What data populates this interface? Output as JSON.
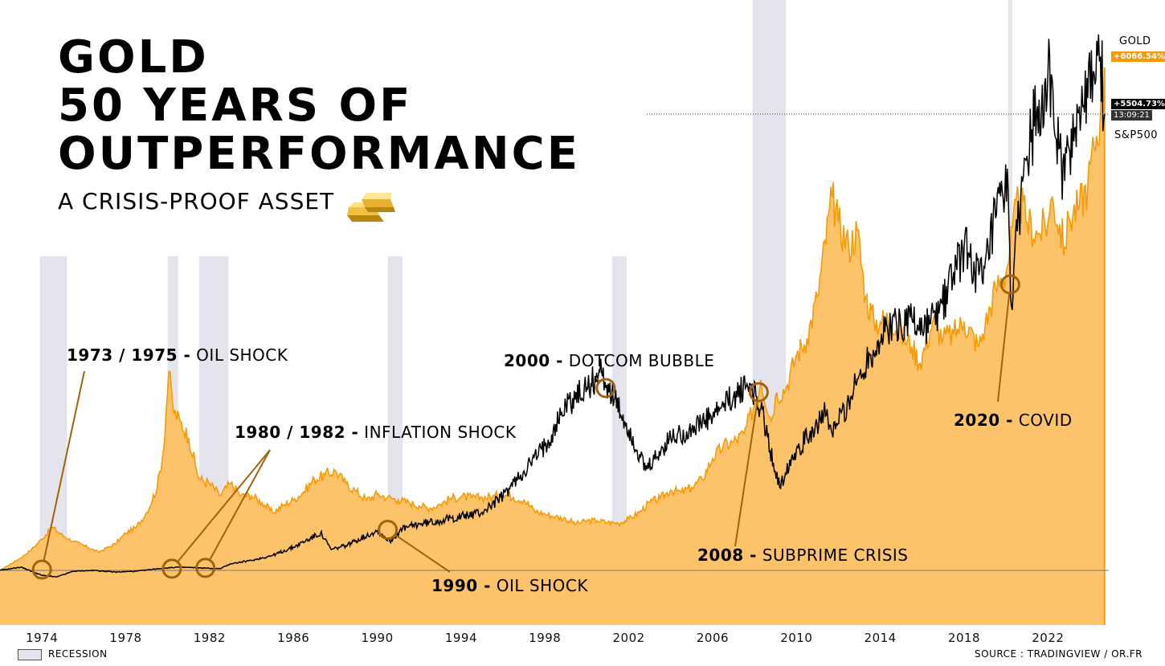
{
  "title_lines": [
    "GOLD",
    "50 YEARS OF",
    "OUTPERFORMANCE"
  ],
  "subtitle": "A CRISIS-PROOF ASSET",
  "legend_label": "RECESSION",
  "source": "SOURCE : TRADINGVIEW / OR.FR",
  "colors": {
    "gold_fill": "#fcc36b",
    "gold_line": "#f59b0a",
    "sp500_line": "#000000",
    "recession": "#e4e4ec",
    "annotation": "#a0630c"
  },
  "chart_data": {
    "type": "area",
    "x_ticks": [
      "1974",
      "1978",
      "1982",
      "1986",
      "1990",
      "1994",
      "1998",
      "2002",
      "2006",
      "2010",
      "2014",
      "2018",
      "2022"
    ],
    "xlim": [
      1972.0,
      2024.9
    ],
    "ylim": [
      -200,
      6300
    ],
    "y_unit": "%",
    "grid": false,
    "series": [
      {
        "name": "GOLD",
        "last_value_label": "+6066.54%",
        "style": "area",
        "points": [
          [
            1972.0,
            0
          ],
          [
            1973.0,
            150
          ],
          [
            1973.5,
            250
          ],
          [
            1974.0,
            380
          ],
          [
            1974.5,
            520
          ],
          [
            1975.0,
            420
          ],
          [
            1975.5,
            350
          ],
          [
            1976.0,
            300
          ],
          [
            1976.7,
            220
          ],
          [
            1977.5,
            320
          ],
          [
            1978.0,
            450
          ],
          [
            1978.5,
            520
          ],
          [
            1979.0,
            700
          ],
          [
            1979.5,
            1000
          ],
          [
            1979.8,
            1450
          ],
          [
            1980.05,
            2400
          ],
          [
            1980.3,
            1900
          ],
          [
            1980.6,
            1800
          ],
          [
            1981.0,
            1600
          ],
          [
            1981.5,
            1100
          ],
          [
            1982.0,
            1050
          ],
          [
            1982.5,
            900
          ],
          [
            1983.0,
            1050
          ],
          [
            1983.5,
            900
          ],
          [
            1984.0,
            900
          ],
          [
            1984.5,
            820
          ],
          [
            1985.0,
            700
          ],
          [
            1985.5,
            780
          ],
          [
            1986.0,
            850
          ],
          [
            1986.5,
            950
          ],
          [
            1987.0,
            1100
          ],
          [
            1987.5,
            1150
          ],
          [
            1988.0,
            1200
          ],
          [
            1988.5,
            1050
          ],
          [
            1989.0,
            950
          ],
          [
            1989.5,
            850
          ],
          [
            1990.0,
            920
          ],
          [
            1990.5,
            880
          ],
          [
            1991.0,
            850
          ],
          [
            1991.5,
            820
          ],
          [
            1992.0,
            780
          ],
          [
            1992.5,
            750
          ],
          [
            1993.0,
            800
          ],
          [
            1993.5,
            870
          ],
          [
            1994.0,
            890
          ],
          [
            1994.5,
            880
          ],
          [
            1995.0,
            880
          ],
          [
            1995.5,
            890
          ],
          [
            1996.0,
            920
          ],
          [
            1996.5,
            880
          ],
          [
            1997.0,
            850
          ],
          [
            1997.5,
            720
          ],
          [
            1998.0,
            680
          ],
          [
            1998.5,
            650
          ],
          [
            1999.0,
            620
          ],
          [
            1999.5,
            560
          ],
          [
            2000.0,
            600
          ],
          [
            2000.5,
            600
          ],
          [
            2001.0,
            580
          ],
          [
            2001.5,
            570
          ],
          [
            2002.0,
            620
          ],
          [
            2002.5,
            700
          ],
          [
            2003.0,
            820
          ],
          [
            2003.5,
            870
          ],
          [
            2004.0,
            970
          ],
          [
            2004.5,
            940
          ],
          [
            2005.0,
            1000
          ],
          [
            2005.5,
            1100
          ],
          [
            2006.0,
            1350
          ],
          [
            2006.5,
            1500
          ],
          [
            2007.0,
            1550
          ],
          [
            2007.5,
            1650
          ],
          [
            2008.0,
            2000
          ],
          [
            2008.3,
            2300
          ],
          [
            2008.8,
            1800
          ],
          [
            2009.0,
            2100
          ],
          [
            2009.5,
            2200
          ],
          [
            2010.0,
            2600
          ],
          [
            2010.5,
            2800
          ],
          [
            2011.0,
            3300
          ],
          [
            2011.7,
            4500
          ],
          [
            2012.0,
            4200
          ],
          [
            2012.5,
            3900
          ],
          [
            2012.9,
            4100
          ],
          [
            2013.3,
            3300
          ],
          [
            2013.7,
            3000
          ],
          [
            2014.0,
            3000
          ],
          [
            2014.5,
            3050
          ],
          [
            2015.0,
            2850
          ],
          [
            2015.5,
            2700
          ],
          [
            2015.9,
            2500
          ],
          [
            2016.5,
            3000
          ],
          [
            2017.0,
            2800
          ],
          [
            2017.5,
            2850
          ],
          [
            2018.0,
            3000
          ],
          [
            2018.7,
            2700
          ],
          [
            2019.0,
            2950
          ],
          [
            2019.5,
            3400
          ],
          [
            2020.0,
            3600
          ],
          [
            2020.6,
            4500
          ],
          [
            2021.0,
            4200
          ],
          [
            2021.5,
            4050
          ],
          [
            2022.0,
            4200
          ],
          [
            2022.2,
            4500
          ],
          [
            2022.8,
            3900
          ],
          [
            2023.0,
            4250
          ],
          [
            2023.5,
            4400
          ],
          [
            2023.9,
            4650
          ],
          [
            2024.2,
            5100
          ],
          [
            2024.5,
            5500
          ],
          [
            2024.7,
            6066.54
          ]
        ]
      },
      {
        "name": "S&P500",
        "last_value_label": "+5504.73%",
        "time_label": "13:09:21",
        "style": "line",
        "points": [
          [
            1972.0,
            0
          ],
          [
            1973.0,
            40
          ],
          [
            1974.0,
            -60
          ],
          [
            1974.7,
            -80
          ],
          [
            1975.5,
            -10
          ],
          [
            1976.5,
            0
          ],
          [
            1977.5,
            -20
          ],
          [
            1978.5,
            -10
          ],
          [
            1979.5,
            20
          ],
          [
            1980.5,
            40
          ],
          [
            1981.5,
            30
          ],
          [
            1982.5,
            20
          ],
          [
            1983.0,
            80
          ],
          [
            1984.0,
            120
          ],
          [
            1985.0,
            180
          ],
          [
            1986.0,
            280
          ],
          [
            1987.3,
            450
          ],
          [
            1987.8,
            250
          ],
          [
            1988.5,
            300
          ],
          [
            1989.5,
            420
          ],
          [
            1990.0,
            480
          ],
          [
            1990.6,
            350
          ],
          [
            1991.2,
            500
          ],
          [
            1992.0,
            560
          ],
          [
            1993.0,
            600
          ],
          [
            1994.0,
            650
          ],
          [
            1995.0,
            700
          ],
          [
            1996.0,
            900
          ],
          [
            1997.0,
            1200
          ],
          [
            1998.0,
            1500
          ],
          [
            1999.0,
            2000
          ],
          [
            2000.0,
            2200
          ],
          [
            2000.7,
            2400
          ],
          [
            2001.3,
            2050
          ],
          [
            2002.0,
            1700
          ],
          [
            2002.8,
            1200
          ],
          [
            2003.3,
            1350
          ],
          [
            2004.0,
            1600
          ],
          [
            2005.0,
            1700
          ],
          [
            2006.0,
            1850
          ],
          [
            2007.0,
            2100
          ],
          [
            2007.8,
            2250
          ],
          [
            2008.3,
            1950
          ],
          [
            2008.9,
            1300
          ],
          [
            2009.2,
            1000
          ],
          [
            2009.8,
            1400
          ],
          [
            2010.5,
            1600
          ],
          [
            2011.3,
            1900
          ],
          [
            2011.7,
            1650
          ],
          [
            2012.5,
            2050
          ],
          [
            2013.5,
            2600
          ],
          [
            2014.5,
            2950
          ],
          [
            2015.5,
            3050
          ],
          [
            2016.0,
            2900
          ],
          [
            2016.8,
            3100
          ],
          [
            2017.5,
            3600
          ],
          [
            2018.0,
            3900
          ],
          [
            2018.9,
            3450
          ],
          [
            2019.5,
            4250
          ],
          [
            2020.1,
            4600
          ],
          [
            2020.25,
            3200
          ],
          [
            2020.7,
            4500
          ],
          [
            2021.0,
            5000
          ],
          [
            2021.5,
            5600
          ],
          [
            2022.0,
            6000
          ],
          [
            2022.4,
            5200
          ],
          [
            2022.8,
            4700
          ],
          [
            2023.0,
            5100
          ],
          [
            2023.5,
            5600
          ],
          [
            2023.9,
            5700
          ],
          [
            2024.2,
            6000
          ],
          [
            2024.5,
            6200
          ],
          [
            2024.7,
            5504.73
          ]
        ]
      }
    ],
    "recessions": [
      [
        1973.9,
        1975.2
      ],
      [
        1980.0,
        1980.5
      ],
      [
        1981.5,
        1982.9
      ],
      [
        1990.5,
        1991.2
      ],
      [
        2001.2,
        2001.9
      ],
      [
        2007.9,
        2009.5
      ],
      [
        2020.1,
        2020.3
      ]
    ],
    "annotations": [
      {
        "bold": "1973 / 1975 -",
        "text": " OIL SHOCK",
        "target": [
          [
            1974.0,
            10
          ]
        ]
      },
      {
        "bold": "1980 / 1982 -",
        "text": " INFLATION SHOCK",
        "target": [
          [
            1980.2,
            20
          ],
          [
            1981.8,
            30
          ]
        ]
      },
      {
        "bold": "2000 -",
        "text": " DOTCOM BUBBLE",
        "target": [
          [
            2000.9,
            2200
          ]
        ]
      },
      {
        "bold": "1990 -",
        "text": " OIL SHOCK",
        "target": [
          [
            1990.5,
            490
          ]
        ]
      },
      {
        "bold": "2008 -",
        "text": " SUBPRIME CRISIS",
        "target": [
          [
            2008.2,
            2150
          ]
        ]
      },
      {
        "bold": "2020 -",
        "text": " COVID",
        "target": [
          [
            2020.2,
            3450
          ]
        ]
      }
    ]
  }
}
